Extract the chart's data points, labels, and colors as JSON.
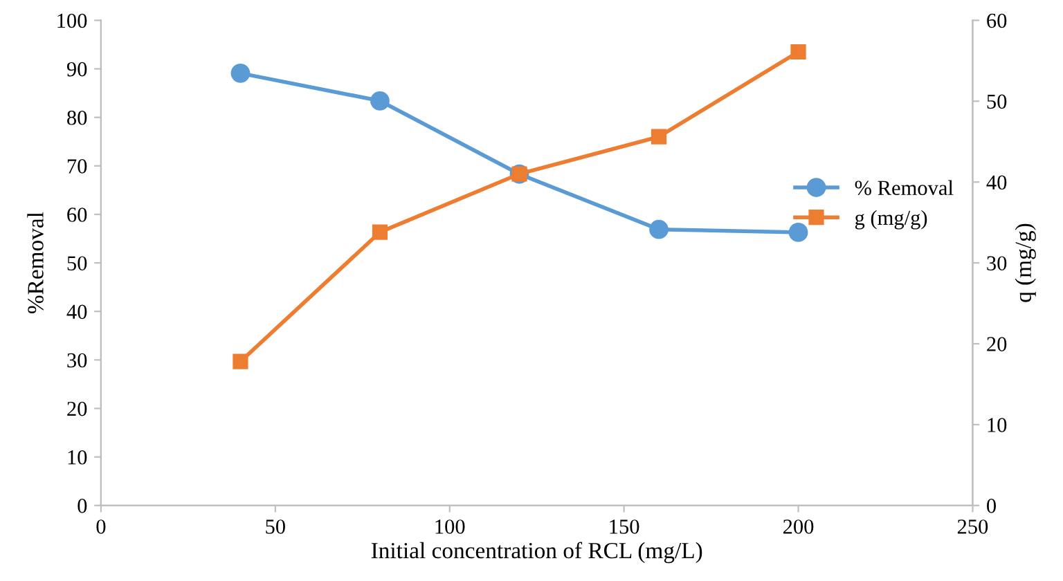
{
  "chart_data": {
    "type": "line",
    "xlabel": "Initial concentration of RCL (mg/L)",
    "ylabel": "%Removal",
    "y2label": "q (mg/g)",
    "x": [
      40,
      80,
      120,
      160,
      200
    ],
    "series": [
      {
        "name": "% Removal",
        "color": "#5b9bd5",
        "values": [
          89.1,
          83.4,
          68.3,
          56.9,
          56.3
        ]
      },
      {
        "name": "g (mg/g)",
        "color": "#ed7d31",
        "values": [
          17.8,
          33.8,
          41.0,
          45.6,
          56.1
        ],
        "axis": "y2",
        "marker": "square"
      }
    ],
    "marker": "circle",
    "line_style": "solid",
    "grid": false,
    "legend": "right",
    "xlim": [
      0,
      250
    ],
    "xticks": [
      0,
      50,
      100,
      150,
      200,
      250
    ],
    "ylim": [
      0,
      100
    ],
    "yticks": [
      0,
      10,
      20,
      30,
      40,
      50,
      60,
      70,
      80,
      90,
      100
    ],
    "y2lim": [
      0,
      60
    ],
    "y2ticks": [
      0,
      10,
      20,
      30,
      40,
      50,
      60
    ]
  }
}
